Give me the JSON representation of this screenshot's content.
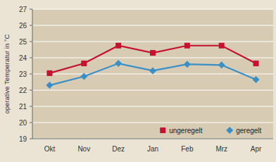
{
  "chart_data": {
    "type": "line",
    "y_label": "operative Temperatur in °C",
    "categories": [
      "Okt",
      "Nov",
      "Dez",
      "Jan",
      "Feb",
      "Mrz",
      "Apr"
    ],
    "series": [
      {
        "name": "ungeregelt",
        "color": "#c41230",
        "marker": "square",
        "values": [
          23.05,
          23.65,
          24.75,
          24.3,
          24.75,
          24.75,
          23.65
        ]
      },
      {
        "name": "geregelt",
        "color": "#3a8fc6",
        "marker": "diamond",
        "values": [
          22.3,
          22.85,
          23.65,
          23.2,
          23.6,
          23.55,
          22.65
        ]
      }
    ],
    "ylim": [
      19,
      27
    ],
    "yticks": [
      19,
      20,
      21,
      22,
      23,
      24,
      25,
      26,
      27
    ],
    "grid": true,
    "legend": "lower right"
  }
}
